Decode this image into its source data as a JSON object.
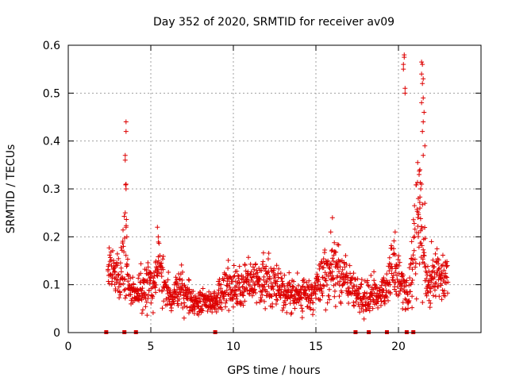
{
  "chart_data": {
    "type": "scatter",
    "title": "Day 352 of 2020, SRMTID for receiver av09",
    "xlabel": "GPS time / hours",
    "ylabel": "SRMTID / TECUs",
    "xlim": [
      0,
      25
    ],
    "ylim": [
      0,
      0.6
    ],
    "xticks": [
      0,
      5,
      10,
      15,
      20
    ],
    "xtick_labels": [
      "0",
      "5",
      "10",
      "15",
      "20"
    ],
    "yticks": [
      0,
      0.1,
      0.2,
      0.3,
      0.4,
      0.5,
      0.6
    ],
    "ytick_labels": [
      "0",
      "0.1",
      "0.2",
      "0.3",
      "0.4",
      "0.5",
      "0.6"
    ],
    "grid": true,
    "marker": "+",
    "color": "#dd0000",
    "x_range": [
      2.4,
      23.0
    ],
    "baseline_markers_x": [
      2.3,
      3.4,
      4.1,
      8.9,
      17.4,
      18.2,
      19.3,
      20.5,
      20.9
    ],
    "profile": [
      [
        2.4,
        0.12,
        0.04
      ],
      [
        2.8,
        0.13,
        0.04
      ],
      [
        3.1,
        0.12,
        0.04
      ],
      [
        3.3,
        0.16,
        0.06
      ],
      [
        3.5,
        0.18,
        0.1
      ],
      [
        3.7,
        0.09,
        0.03
      ],
      [
        4.2,
        0.08,
        0.03
      ],
      [
        4.7,
        0.1,
        0.04
      ],
      [
        5.2,
        0.1,
        0.04
      ],
      [
        5.5,
        0.14,
        0.05
      ],
      [
        5.9,
        0.08,
        0.03
      ],
      [
        6.5,
        0.08,
        0.03
      ],
      [
        7.0,
        0.09,
        0.04
      ],
      [
        7.5,
        0.06,
        0.02
      ],
      [
        8.2,
        0.07,
        0.02
      ],
      [
        8.8,
        0.06,
        0.02
      ],
      [
        9.2,
        0.07,
        0.03
      ],
      [
        9.6,
        0.1,
        0.04
      ],
      [
        10.2,
        0.09,
        0.03
      ],
      [
        10.8,
        0.1,
        0.04
      ],
      [
        11.5,
        0.11,
        0.04
      ],
      [
        12.2,
        0.1,
        0.04
      ],
      [
        12.8,
        0.1,
        0.03
      ],
      [
        13.2,
        0.08,
        0.03
      ],
      [
        13.8,
        0.08,
        0.03
      ],
      [
        14.5,
        0.08,
        0.03
      ],
      [
        15.0,
        0.09,
        0.04
      ],
      [
        15.6,
        0.12,
        0.05
      ],
      [
        16.2,
        0.13,
        0.05
      ],
      [
        16.8,
        0.11,
        0.04
      ],
      [
        17.4,
        0.08,
        0.03
      ],
      [
        18.0,
        0.07,
        0.03
      ],
      [
        18.6,
        0.08,
        0.03
      ],
      [
        19.2,
        0.09,
        0.03
      ],
      [
        19.7,
        0.14,
        0.05
      ],
      [
        20.2,
        0.1,
        0.04
      ],
      [
        20.6,
        0.07,
        0.03
      ],
      [
        21.0,
        0.2,
        0.1
      ],
      [
        21.3,
        0.25,
        0.12
      ],
      [
        21.7,
        0.1,
        0.04
      ],
      [
        22.2,
        0.12,
        0.04
      ],
      [
        23.0,
        0.12,
        0.04
      ]
    ],
    "spikes": [
      {
        "x": 3.5,
        "y": 0.44
      },
      {
        "x": 3.5,
        "y": 0.42
      },
      {
        "x": 3.45,
        "y": 0.37
      },
      {
        "x": 3.45,
        "y": 0.36
      },
      {
        "x": 3.5,
        "y": 0.31
      },
      {
        "x": 3.5,
        "y": 0.3
      },
      {
        "x": 3.45,
        "y": 0.25
      },
      {
        "x": 3.5,
        "y": 0.22
      },
      {
        "x": 3.55,
        "y": 0.2
      },
      {
        "x": 5.4,
        "y": 0.22
      },
      {
        "x": 5.45,
        "y": 0.2
      },
      {
        "x": 16.0,
        "y": 0.24
      },
      {
        "x": 15.9,
        "y": 0.21
      },
      {
        "x": 20.35,
        "y": 0.58
      },
      {
        "x": 20.35,
        "y": 0.575
      },
      {
        "x": 20.3,
        "y": 0.56
      },
      {
        "x": 20.3,
        "y": 0.55
      },
      {
        "x": 20.4,
        "y": 0.51
      },
      {
        "x": 20.4,
        "y": 0.5
      },
      {
        "x": 21.4,
        "y": 0.565
      },
      {
        "x": 21.45,
        "y": 0.56
      },
      {
        "x": 21.4,
        "y": 0.54
      },
      {
        "x": 21.5,
        "y": 0.53
      },
      {
        "x": 21.45,
        "y": 0.52
      },
      {
        "x": 21.5,
        "y": 0.49
      },
      {
        "x": 21.4,
        "y": 0.48
      },
      {
        "x": 21.55,
        "y": 0.46
      },
      {
        "x": 21.5,
        "y": 0.44
      },
      {
        "x": 21.45,
        "y": 0.42
      },
      {
        "x": 21.6,
        "y": 0.39
      },
      {
        "x": 21.5,
        "y": 0.37
      },
      {
        "x": 21.3,
        "y": 0.34
      },
      {
        "x": 21.25,
        "y": 0.33
      },
      {
        "x": 21.4,
        "y": 0.31
      },
      {
        "x": 21.35,
        "y": 0.3
      },
      {
        "x": 21.2,
        "y": 0.28
      },
      {
        "x": 21.6,
        "y": 0.27
      },
      {
        "x": 21.3,
        "y": 0.26
      },
      {
        "x": 21.2,
        "y": 0.25
      },
      {
        "x": 20.8,
        "y": 0.19
      },
      {
        "x": 22.0,
        "y": 0.19
      },
      {
        "x": 19.8,
        "y": 0.21
      }
    ]
  }
}
